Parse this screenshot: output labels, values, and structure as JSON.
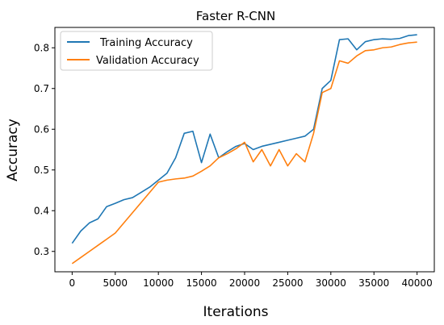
{
  "chart_data": {
    "type": "line",
    "title": "Faster R-CNN",
    "xlabel": "Iterations",
    "ylabel": "Accuracy",
    "xlim": [
      -2000,
      42000
    ],
    "ylim": [
      0.25,
      0.85
    ],
    "xticks": [
      0,
      5000,
      10000,
      15000,
      20000,
      25000,
      30000,
      35000,
      40000
    ],
    "yticks": [
      0.3,
      0.4,
      0.5,
      0.6,
      0.7,
      0.8
    ],
    "ytick_labels": [
      "0.3",
      "0.4",
      "0.5",
      "0.6",
      "0.7",
      "0.8"
    ],
    "grid": false,
    "legend_position": "top-left",
    "series": [
      {
        "name": "Training Accuracy",
        "color": "#1f77b4",
        "x": [
          0,
          1000,
          2000,
          3000,
          4000,
          5000,
          6000,
          7000,
          8000,
          9000,
          10000,
          11000,
          12000,
          13000,
          14000,
          15000,
          16000,
          17000,
          18000,
          19000,
          20000,
          21000,
          22000,
          23000,
          24000,
          25000,
          26000,
          27000,
          28000,
          29000,
          30000,
          31000,
          32000,
          33000,
          34000,
          35000,
          36000,
          37000,
          38000,
          39000,
          40000
        ],
        "y": [
          0.32,
          0.35,
          0.37,
          0.38,
          0.41,
          0.418,
          0.427,
          0.432,
          0.445,
          0.458,
          0.475,
          0.492,
          0.53,
          0.59,
          0.595,
          0.518,
          0.588,
          0.53,
          0.545,
          0.558,
          0.565,
          0.55,
          0.558,
          0.563,
          0.568,
          0.573,
          0.578,
          0.583,
          0.6,
          0.7,
          0.72,
          0.82,
          0.822,
          0.795,
          0.815,
          0.82,
          0.822,
          0.821,
          0.823,
          0.83,
          0.832
        ]
      },
      {
        "name": "Validation Accuracy",
        "color": "#ff7f0e",
        "x": [
          0,
          1000,
          2000,
          3000,
          4000,
          5000,
          6000,
          7000,
          8000,
          9000,
          10000,
          11000,
          12000,
          13000,
          14000,
          15000,
          16000,
          17000,
          18000,
          19000,
          20000,
          21000,
          22000,
          23000,
          24000,
          25000,
          26000,
          27000,
          28000,
          29000,
          30000,
          31000,
          32000,
          33000,
          34000,
          35000,
          36000,
          37000,
          38000,
          39000,
          40000
        ],
        "y": [
          0.27,
          0.285,
          0.3,
          0.315,
          0.33,
          0.345,
          0.37,
          0.395,
          0.42,
          0.445,
          0.47,
          0.475,
          0.478,
          0.48,
          0.485,
          0.497,
          0.51,
          0.53,
          0.54,
          0.552,
          0.568,
          0.52,
          0.55,
          0.51,
          0.55,
          0.51,
          0.54,
          0.52,
          0.59,
          0.69,
          0.7,
          0.768,
          0.762,
          0.78,
          0.793,
          0.795,
          0.8,
          0.802,
          0.808,
          0.812,
          0.814
        ]
      }
    ]
  }
}
